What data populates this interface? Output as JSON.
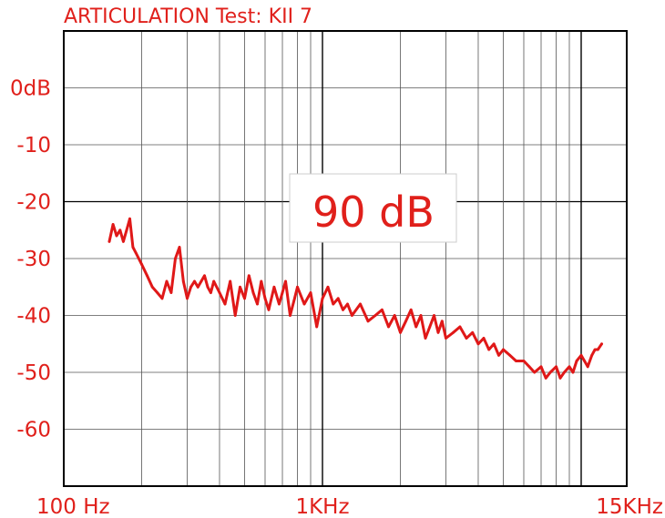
{
  "chart_data": {
    "type": "line",
    "title": "ARTICULATION Test: KII 7",
    "annotation": "90 dB",
    "xscale": "log",
    "xlim": [
      100,
      15000
    ],
    "ylim": [
      -70,
      10
    ],
    "grid": true,
    "y_ticks": [
      {
        "value": 0,
        "label": "0dB"
      },
      {
        "value": -10,
        "label": "-10"
      },
      {
        "value": -20,
        "label": "-20"
      },
      {
        "value": -30,
        "label": "-30"
      },
      {
        "value": -40,
        "label": "-40"
      },
      {
        "value": -50,
        "label": "-50"
      },
      {
        "value": -60,
        "label": "-60"
      }
    ],
    "x_ticks": [
      {
        "value": 100,
        "label": "100 Hz"
      },
      {
        "value": 1000,
        "label": "1KHz"
      },
      {
        "value": 15000,
        "label": "15KHz"
      }
    ],
    "series": [
      {
        "color": "#e01818",
        "x": [
          150,
          155,
          160,
          165,
          170,
          175,
          180,
          185,
          190,
          200,
          210,
          220,
          230,
          240,
          250,
          260,
          270,
          280,
          290,
          300,
          310,
          320,
          330,
          340,
          350,
          360,
          370,
          380,
          400,
          420,
          440,
          460,
          480,
          500,
          520,
          540,
          560,
          580,
          600,
          620,
          650,
          680,
          700,
          720,
          750,
          780,
          800,
          850,
          900,
          950,
          1000,
          1050,
          1100,
          1150,
          1200,
          1250,
          1300,
          1400,
          1500,
          1600,
          1700,
          1800,
          1900,
          2000,
          2100,
          2200,
          2300,
          2400,
          2500,
          2600,
          2700,
          2800,
          2900,
          3000,
          3200,
          3400,
          3600,
          3800,
          4000,
          4200,
          4400,
          4600,
          4800,
          5000,
          5300,
          5600,
          6000,
          6300,
          6600,
          7000,
          7300,
          7600,
          8000,
          8300,
          8600,
          9000,
          9300,
          9600,
          10000,
          10300,
          10600,
          11000,
          11300,
          11600,
          12000
        ],
        "y": [
          -27,
          -24,
          -26,
          -25,
          -27,
          -25,
          -23,
          -28,
          -29,
          -31,
          -33,
          -35,
          -36,
          -37,
          -34,
          -36,
          -30,
          -28,
          -34,
          -37,
          -35,
          -34,
          -35,
          -34,
          -33,
          -35,
          -36,
          -34,
          -36,
          -38,
          -34,
          -40,
          -35,
          -37,
          -33,
          -36,
          -38,
          -34,
          -37,
          -39,
          -35,
          -38,
          -36,
          -34,
          -40,
          -37,
          -35,
          -38,
          -36,
          -42,
          -37,
          -35,
          -38,
          -37,
          -39,
          -38,
          -40,
          -38,
          -41,
          -40,
          -39,
          -42,
          -40,
          -43,
          -41,
          -39,
          -42,
          -40,
          -44,
          -42,
          -40,
          -43,
          -41,
          -44,
          -43,
          -42,
          -44,
          -43,
          -45,
          -44,
          -46,
          -45,
          -47,
          -46,
          -47,
          -48,
          -48,
          -49,
          -50,
          -49,
          -51,
          -50,
          -49,
          -51,
          -50,
          -49,
          -50,
          -48,
          -47,
          -48,
          -49,
          -47,
          -46,
          -46,
          -45
        ]
      }
    ]
  }
}
